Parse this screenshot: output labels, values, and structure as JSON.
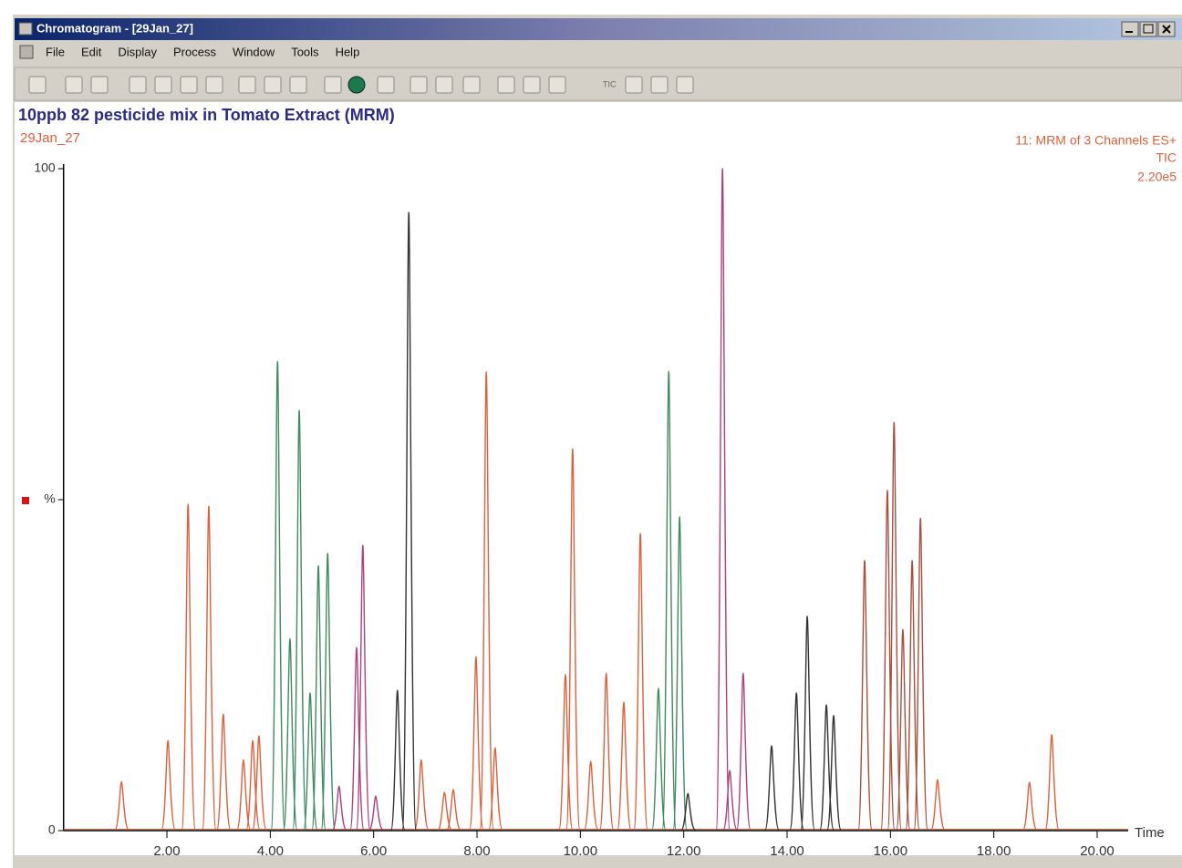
{
  "window": {
    "title": "Chromatogram - [29Jan_27]",
    "menu": [
      "File",
      "Edit",
      "Display",
      "Process",
      "Window",
      "Tools",
      "Help"
    ],
    "toolbar_label": "TIC"
  },
  "chart_data": {
    "type": "line",
    "title": "10ppb 82 pesticide mix in Tomato Extract (MRM)",
    "subtitle": "29Jan_27",
    "info": [
      "11: MRM of 3 Channels ES+",
      "TIC",
      "2.20e5"
    ],
    "x_label": "Time",
    "xlim": [
      0,
      20.6
    ],
    "ylim": [
      0,
      100
    ],
    "xticks": [
      {
        "value": 2,
        "label": "2.00"
      },
      {
        "value": 4,
        "label": "4.00"
      },
      {
        "value": 6,
        "label": "6.00"
      },
      {
        "value": 8,
        "label": "8.00"
      },
      {
        "value": 10,
        "label": "10.00"
      },
      {
        "value": 12,
        "label": "12.00"
      },
      {
        "value": 14,
        "label": "14.00"
      },
      {
        "value": 16,
        "label": "16.00"
      },
      {
        "value": 18,
        "label": "18.00"
      },
      {
        "value": 20,
        "label": "20.00"
      }
    ],
    "yticks": [
      0,
      {
        "value": 50,
        "label": "%"
      },
      100
    ],
    "series": [
      {
        "color": "#e0603a",
        "x": [
          1.12,
          2.02,
          2.41,
          2.81,
          3.09,
          3.48,
          3.66,
          3.78,
          6.92,
          7.37,
          7.54,
          7.98,
          8.18,
          8.35,
          9.71,
          9.85,
          10.2,
          10.5,
          10.84,
          11.16,
          16.91,
          18.69,
          19.12
        ],
        "values": [
          7.4,
          13.6,
          49.3,
          49,
          17.6,
          10.7,
          13.6,
          14.3,
          10.7,
          5.8,
          6.2,
          26.3,
          69.3,
          12.5,
          23.6,
          57.7,
          10.5,
          23.8,
          19.4,
          44.9,
          7.7,
          7.3,
          14.5
        ]
      },
      {
        "color": "#3f8a5e",
        "x": [
          4.14,
          4.38,
          4.56,
          4.77,
          4.93,
          5.11,
          11.51,
          11.71,
          11.92
        ],
        "values": [
          70.9,
          29,
          63.5,
          20.8,
          40,
          41.9,
          21.5,
          69.4,
          47.4
        ]
      },
      {
        "color": "#b0407a",
        "x": [
          5.33,
          5.67,
          5.79,
          6.04,
          12.75,
          12.89,
          13.15
        ],
        "values": [
          6.7,
          27.7,
          43.1,
          5.2,
          100,
          9.1,
          23.8
        ]
      },
      {
        "color": "#333333",
        "x": [
          6.46,
          6.68,
          12.08,
          13.7,
          14.18,
          14.39,
          14.76,
          14.9
        ],
        "values": [
          21.2,
          93.4,
          5.6,
          12.8,
          20.8,
          32.4,
          19,
          17.4
        ]
      },
      {
        "color": "#a8503c",
        "x": [
          15.5,
          15.94,
          16.07,
          16.24,
          16.42,
          16.58
        ],
        "values": [
          40.8,
          51.4,
          61.7,
          30.4,
          40.8,
          47.2
        ]
      }
    ]
  }
}
